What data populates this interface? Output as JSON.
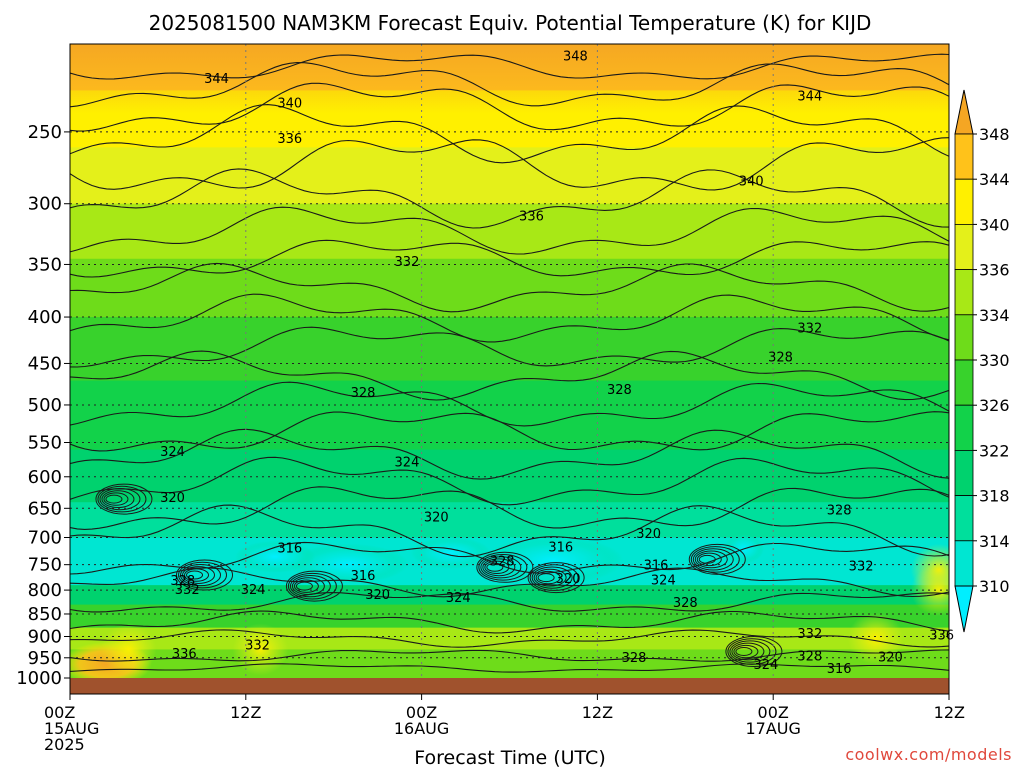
{
  "title": "2025081500 NAM3KM Forecast Equiv. Potential Temperature (K) for KIJD",
  "credit": "coolwx.com/models",
  "chart_data": {
    "type": "heatmap",
    "title": "2025081500 NAM3KM Forecast Equiv. Potential Temperature (K) for KIJD",
    "xlabel": "Forecast Time (UTC)",
    "ylabel": "",
    "x_ticks": [
      {
        "hour": 0,
        "labels": [
          "00Z",
          "15AUG",
          "2025"
        ]
      },
      {
        "hour": 12,
        "labels": [
          "12Z"
        ]
      },
      {
        "hour": 24,
        "labels": [
          "00Z",
          "16AUG"
        ]
      },
      {
        "hour": 36,
        "labels": [
          "12Z"
        ]
      },
      {
        "hour": 48,
        "labels": [
          "00Z",
          "17AUG"
        ]
      },
      {
        "hour": 60,
        "labels": [
          "12Z"
        ]
      }
    ],
    "xlim_hours": [
      0,
      60
    ],
    "y_ticks": [
      250,
      300,
      350,
      400,
      450,
      500,
      550,
      600,
      650,
      700,
      750,
      800,
      850,
      900,
      950,
      1000
    ],
    "ylim_hPa": [
      200,
      1000
    ],
    "y_scale": "log",
    "colorbar": {
      "levels": [
        310,
        314,
        318,
        322,
        326,
        330,
        334,
        336,
        340,
        344,
        348
      ],
      "labels": [
        "310",
        "314",
        "318",
        "322",
        "326",
        "330",
        "334",
        "336",
        "340",
        "344",
        "348"
      ],
      "colors": [
        "#00eeff",
        "#00e6d2",
        "#00df9c",
        "#00d26e",
        "#12d24a",
        "#38d22c",
        "#6edc1a",
        "#a8e816",
        "#e4f01a",
        "#fff000",
        "#ffc21a",
        "#f5a623"
      ]
    },
    "contour_levels_labeled": [
      316,
      320,
      324,
      328,
      332,
      336,
      340,
      344,
      348
    ],
    "contour_labels": [
      {
        "text": "348",
        "hour": 34.5,
        "hPa": 206
      },
      {
        "text": "344",
        "hour": 10.0,
        "hPa": 218
      },
      {
        "text": "344",
        "hour": 50.5,
        "hPa": 228
      },
      {
        "text": "340",
        "hour": 15.0,
        "hPa": 232
      },
      {
        "text": "340",
        "hour": 46.5,
        "hPa": 283
      },
      {
        "text": "336",
        "hour": 15.0,
        "hPa": 254
      },
      {
        "text": "336",
        "hour": 31.5,
        "hPa": 309
      },
      {
        "text": "332",
        "hour": 23.0,
        "hPa": 347
      },
      {
        "text": "332",
        "hour": 50.5,
        "hPa": 411
      },
      {
        "text": "328",
        "hour": 20.0,
        "hPa": 484
      },
      {
        "text": "328",
        "hour": 37.5,
        "hPa": 480
      },
      {
        "text": "328",
        "hour": 48.5,
        "hPa": 442
      },
      {
        "text": "328",
        "hour": 52.5,
        "hPa": 652
      },
      {
        "text": "328",
        "hour": 7.7,
        "hPa": 780
      },
      {
        "text": "328",
        "hour": 29.5,
        "hPa": 742
      },
      {
        "text": "328",
        "hour": 42.0,
        "hPa": 825
      },
      {
        "text": "328",
        "hour": 38.5,
        "hPa": 948
      },
      {
        "text": "328",
        "hour": 50.5,
        "hPa": 944
      },
      {
        "text": "324",
        "hour": 7.0,
        "hPa": 562
      },
      {
        "text": "324",
        "hour": 23.0,
        "hPa": 577
      },
      {
        "text": "324",
        "hour": 12.5,
        "hPa": 798
      },
      {
        "text": "324",
        "hour": 26.5,
        "hPa": 814
      },
      {
        "text": "324",
        "hour": 40.5,
        "hPa": 779
      },
      {
        "text": "324",
        "hour": 47.5,
        "hPa": 965
      },
      {
        "text": "320",
        "hour": 7.0,
        "hPa": 632
      },
      {
        "text": "320",
        "hour": 25.0,
        "hPa": 664
      },
      {
        "text": "320",
        "hour": 39.5,
        "hPa": 692
      },
      {
        "text": "320",
        "hour": 21.0,
        "hPa": 808
      },
      {
        "text": "320",
        "hour": 34.0,
        "hPa": 776
      },
      {
        "text": "320",
        "hour": 56.0,
        "hPa": 947
      },
      {
        "text": "316",
        "hour": 15.0,
        "hPa": 718
      },
      {
        "text": "316",
        "hour": 33.5,
        "hPa": 716
      },
      {
        "text": "316",
        "hour": 20.0,
        "hPa": 770
      },
      {
        "text": "316",
        "hour": 40.0,
        "hPa": 750
      },
      {
        "text": "316",
        "hour": 52.5,
        "hPa": 975
      },
      {
        "text": "332",
        "hour": 8.0,
        "hPa": 798
      },
      {
        "text": "332",
        "hour": 12.8,
        "hPa": 918
      },
      {
        "text": "332",
        "hour": 50.5,
        "hPa": 892
      },
      {
        "text": "332",
        "hour": 54.0,
        "hPa": 752
      },
      {
        "text": "336",
        "hour": 7.8,
        "hPa": 939
      },
      {
        "text": "336",
        "hour": 59.5,
        "hPa": 896
      }
    ],
    "ground": "brown band below 1000 hPa",
    "grid": true
  }
}
